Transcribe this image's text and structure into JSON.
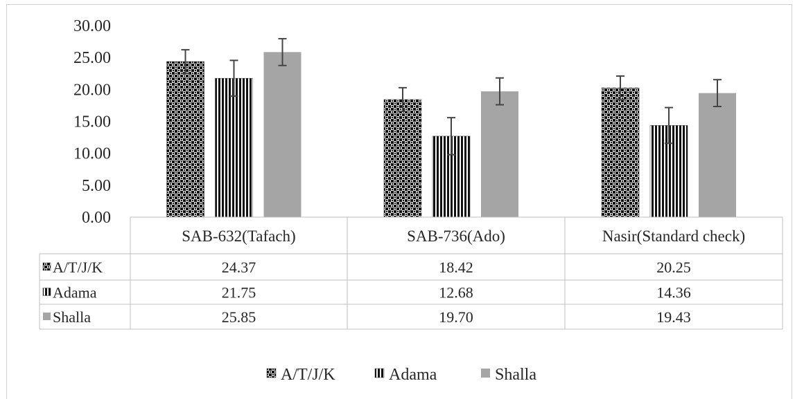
{
  "chart_data": {
    "type": "bar",
    "categories": [
      "SAB-632(Tafach)",
      "SAB-736(Ado)",
      "Nasir(Standard check)"
    ],
    "series": [
      {
        "name": "A/T/J/K",
        "values": [
          24.37,
          18.42,
          20.25
        ],
        "errors": [
          1.85,
          1.85,
          1.85
        ],
        "pattern": "checker",
        "color": "#000000"
      },
      {
        "name": "Adama",
        "values": [
          21.75,
          12.68,
          14.36
        ],
        "errors": [
          2.8,
          2.9,
          2.8
        ],
        "pattern": "vertical-lines",
        "color": "#000000"
      },
      {
        "name": "Shalla",
        "values": [
          25.85,
          19.7,
          19.43
        ],
        "errors": [
          2.1,
          2.1,
          2.1
        ],
        "pattern": "solid",
        "color": "#a5a5a5"
      }
    ],
    "yticks": [
      "0.00",
      "5.00",
      "10.00",
      "15.00",
      "20.00",
      "25.00",
      "30.00"
    ],
    "ylim": [
      0,
      30
    ],
    "table_values": [
      [
        "24.37",
        "18.42",
        "20.25"
      ],
      [
        "21.75",
        "12.68",
        "14.36"
      ],
      [
        "25.85",
        "19.70",
        "19.43"
      ]
    ],
    "legend": [
      "A/T/J/K",
      "Adama",
      "Shalla"
    ],
    "legend_position": "bottom",
    "data_table": true,
    "grid": false
  }
}
